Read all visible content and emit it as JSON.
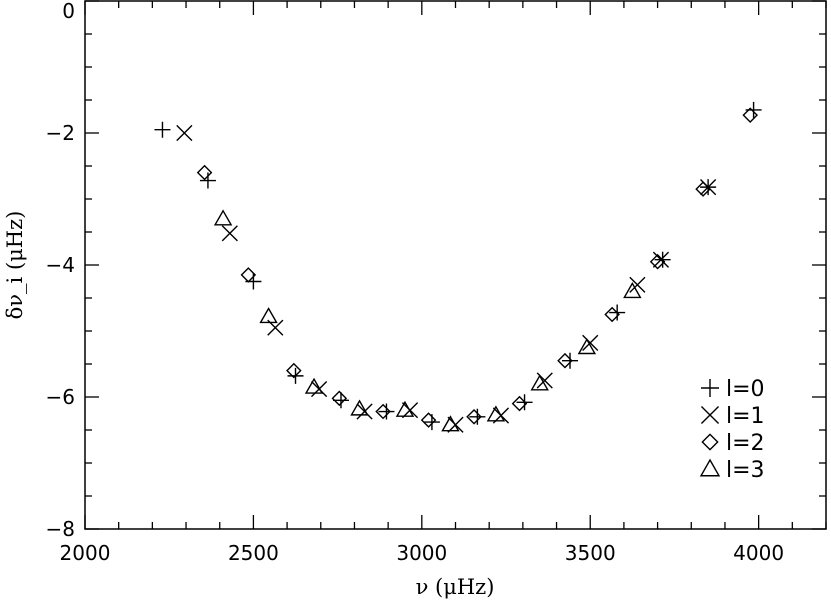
{
  "chart_data": {
    "type": "scatter",
    "xlabel": "ν  (μHz)",
    "ylabel": "δν_i  (μHz)",
    "xlim": [
      2000,
      4200
    ],
    "ylim": [
      -8,
      0
    ],
    "x_ticks": [
      2000,
      2500,
      3000,
      3500,
      4000
    ],
    "x_tick_labels": [
      "2000",
      "2500",
      "3000",
      "3500",
      "4000"
    ],
    "y_ticks": [
      0,
      -2,
      -4,
      -6,
      -8
    ],
    "y_tick_labels": [
      "0",
      "−2",
      "−4",
      "−6",
      "−8"
    ],
    "grid": false,
    "legend_position": "bottom-right",
    "series": [
      {
        "name": "l=0",
        "marker": "plus",
        "points": [
          [
            2230,
            -1.95
          ],
          [
            2365,
            -2.72
          ],
          [
            2500,
            -4.25
          ],
          [
            2625,
            -5.68
          ],
          [
            2760,
            -6.05
          ],
          [
            2895,
            -6.22
          ],
          [
            3030,
            -6.38
          ],
          [
            3165,
            -6.3
          ],
          [
            3305,
            -6.08
          ],
          [
            3440,
            -5.45
          ],
          [
            3580,
            -4.72
          ],
          [
            3715,
            -3.92
          ],
          [
            3850,
            -2.82
          ],
          [
            3985,
            -1.65
          ]
        ]
      },
      {
        "name": "l=1",
        "marker": "cross",
        "points": [
          [
            2295,
            -2.0
          ],
          [
            2430,
            -3.52
          ],
          [
            2565,
            -4.95
          ],
          [
            2695,
            -5.88
          ],
          [
            2830,
            -6.22
          ],
          [
            2965,
            -6.2
          ],
          [
            3100,
            -6.42
          ],
          [
            3235,
            -6.28
          ],
          [
            3365,
            -5.75
          ],
          [
            3500,
            -5.18
          ],
          [
            3640,
            -4.3
          ],
          [
            3710,
            -3.92
          ],
          [
            3850,
            -2.82
          ]
        ]
      },
      {
        "name": "l=2",
        "marker": "diamond",
        "points": [
          [
            2355,
            -2.6
          ],
          [
            2485,
            -4.15
          ],
          [
            2620,
            -5.6
          ],
          [
            2755,
            -6.02
          ],
          [
            2885,
            -6.22
          ],
          [
            3020,
            -6.35
          ],
          [
            3155,
            -6.3
          ],
          [
            3290,
            -6.1
          ],
          [
            3425,
            -5.45
          ],
          [
            3565,
            -4.75
          ],
          [
            3700,
            -3.95
          ],
          [
            3835,
            -2.85
          ],
          [
            3975,
            -1.73
          ]
        ]
      },
      {
        "name": "l=3",
        "marker": "triangle",
        "points": [
          [
            2410,
            -3.3
          ],
          [
            2545,
            -4.78
          ],
          [
            2680,
            -5.85
          ],
          [
            2815,
            -6.18
          ],
          [
            2950,
            -6.2
          ],
          [
            3085,
            -6.42
          ],
          [
            3220,
            -6.27
          ],
          [
            3350,
            -5.8
          ],
          [
            3490,
            -5.25
          ],
          [
            3625,
            -4.4
          ]
        ]
      }
    ],
    "legend": [
      {
        "marker": "plus",
        "text": "l=0"
      },
      {
        "marker": "cross",
        "text": "l=1"
      },
      {
        "marker": "diamond",
        "text": "l=2"
      },
      {
        "marker": "triangle",
        "text": "l=3"
      }
    ]
  }
}
